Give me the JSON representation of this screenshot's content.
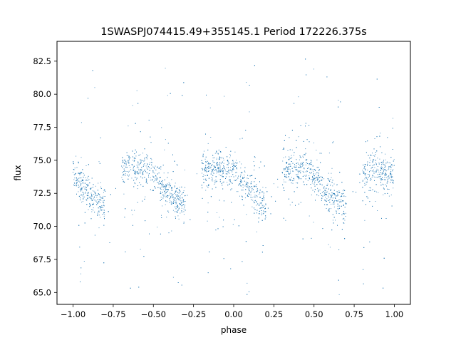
{
  "chart_data": {
    "type": "scatter",
    "title": "1SWASPJ074415.49+355145.1 Period 172226.375s",
    "xlabel": "phase",
    "ylabel": "flux",
    "xlim": [
      -1.1,
      1.1
    ],
    "ylim": [
      64.1,
      84.0
    ],
    "x_ticks": [
      -1.0,
      -0.75,
      -0.5,
      -0.25,
      0.0,
      0.25,
      0.5,
      0.75,
      1.0
    ],
    "x_tick_labels": [
      "−1.00",
      "−0.75",
      "−0.50",
      "−0.25",
      "0.00",
      "0.25",
      "0.50",
      "0.75",
      "1.00"
    ],
    "y_ticks": [
      65.0,
      67.5,
      70.0,
      72.5,
      75.0,
      77.5,
      80.0,
      82.5
    ],
    "y_tick_labels": [
      "65.0",
      "67.5",
      "70.0",
      "72.5",
      "75.0",
      "77.5",
      "80.0",
      "82.5"
    ],
    "grid": false,
    "marker_color": "#1f77b4",
    "phase_gaps": [
      [
        -0.8,
        -0.7
      ],
      [
        -0.3,
        -0.2
      ],
      [
        0.2,
        0.3
      ],
      [
        0.7,
        0.8
      ]
    ],
    "series": [
      {
        "x": [
          -1.0,
          -0.95,
          -0.9,
          -0.85,
          -0.8,
          -0.7,
          -0.65,
          -0.6,
          -0.55,
          -0.5,
          -0.45,
          -0.4,
          -0.35,
          -0.3,
          -0.2,
          -0.15,
          -0.1,
          -0.05,
          0.0,
          0.05,
          0.1,
          0.15,
          0.2,
          0.3,
          0.35,
          0.4,
          0.45,
          0.5,
          0.55,
          0.6,
          0.65,
          0.7,
          0.8,
          0.85,
          0.9,
          0.95,
          1.0
        ],
        "y": [
          74.0,
          73.2,
          72.4,
          72.0,
          71.5,
          74.2,
          74.5,
          74.3,
          74.6,
          74.0,
          73.0,
          72.3,
          72.0,
          71.5,
          74.2,
          74.3,
          74.4,
          74.0,
          74.2,
          73.5,
          73.0,
          72.0,
          71.5,
          74.2,
          74.5,
          74.3,
          74.6,
          74.0,
          73.0,
          72.3,
          72.0,
          71.5,
          74.2,
          74.3,
          74.4,
          74.0,
          74.2
        ]
      }
    ]
  }
}
